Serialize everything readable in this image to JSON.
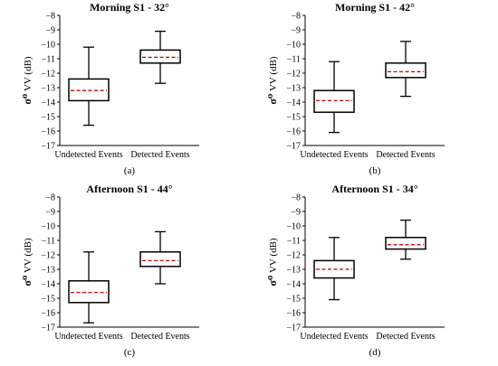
{
  "figure": {
    "captions": [
      "(a)",
      "(b)",
      "(c)",
      "(d)"
    ]
  },
  "chart_data": [
    {
      "type": "box",
      "title": "Morning S1 - 32°",
      "ylabel_symbol": "σ⁰",
      "ylabel_text": " VV (dB)",
      "ylim": [
        -17,
        -8
      ],
      "yticks": [
        -8,
        -9,
        -10,
        -11,
        -12,
        -13,
        -14,
        -15,
        -16,
        -17
      ],
      "categories": [
        "Undetected Events",
        "Detected Events"
      ],
      "boxes": [
        {
          "whisker_low": -15.6,
          "q1": -13.9,
          "median": -13.2,
          "q3": -12.4,
          "whisker_high": -10.2
        },
        {
          "whisker_low": -12.7,
          "q1": -11.3,
          "median": -10.9,
          "q3": -10.4,
          "whisker_high": -9.1
        }
      ]
    },
    {
      "type": "box",
      "title": "Morning S1 - 42°",
      "ylabel_symbol": "σ⁰",
      "ylabel_text": " VV (dB)",
      "ylim": [
        -17,
        -8
      ],
      "yticks": [
        -8,
        -9,
        -10,
        -11,
        -12,
        -13,
        -14,
        -15,
        -16,
        -17
      ],
      "categories": [
        "Undetected Events",
        "Detected Events"
      ],
      "boxes": [
        {
          "whisker_low": -16.1,
          "q1": -14.7,
          "median": -13.9,
          "q3": -13.2,
          "whisker_high": -11.2
        },
        {
          "whisker_low": -13.6,
          "q1": -12.3,
          "median": -11.9,
          "q3": -11.3,
          "whisker_high": -9.8
        }
      ]
    },
    {
      "type": "box",
      "title": "Afternoon S1 - 44°",
      "ylabel_symbol": "σ⁰",
      "ylabel_text": " VV (dB)",
      "ylim": [
        -17,
        -8
      ],
      "yticks": [
        -8,
        -9,
        -10,
        -11,
        -12,
        -13,
        -14,
        -15,
        -16,
        -17
      ],
      "categories": [
        "Undetected Events",
        "Detected Events"
      ],
      "boxes": [
        {
          "whisker_low": -16.7,
          "q1": -15.3,
          "median": -14.6,
          "q3": -13.8,
          "whisker_high": -11.8
        },
        {
          "whisker_low": -14.0,
          "q1": -12.8,
          "median": -12.4,
          "q3": -11.8,
          "whisker_high": -10.4
        }
      ]
    },
    {
      "type": "box",
      "title": "Afternoon S1 - 34°",
      "ylabel_symbol": "σ⁰",
      "ylabel_text": " VV (dB)",
      "ylim": [
        -17,
        -8
      ],
      "yticks": [
        -8,
        -9,
        -10,
        -11,
        -12,
        -13,
        -14,
        -15,
        -16,
        -17
      ],
      "categories": [
        "Undetected Events",
        "Detected Events"
      ],
      "boxes": [
        {
          "whisker_low": -15.1,
          "q1": -13.6,
          "median": -13.0,
          "q3": -12.4,
          "whisker_high": -10.8
        },
        {
          "whisker_low": -12.3,
          "q1": -11.6,
          "median": -11.3,
          "q3": -10.8,
          "whisker_high": -9.6
        }
      ]
    }
  ]
}
